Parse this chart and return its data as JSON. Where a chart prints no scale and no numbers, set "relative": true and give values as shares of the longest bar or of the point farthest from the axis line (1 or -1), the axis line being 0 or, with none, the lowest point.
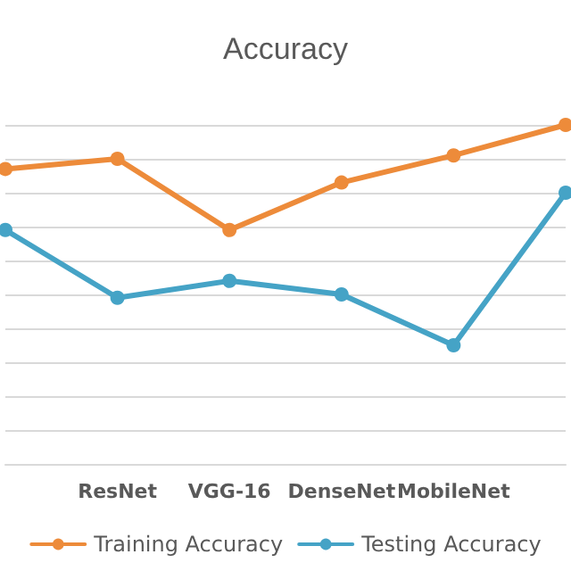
{
  "chart_data": {
    "type": "line",
    "title": "Accuracy",
    "relative": true,
    "categories": [
      null,
      "ResNet",
      "VGG-16",
      "DenseNet",
      "MobileNet",
      null
    ],
    "series": [
      {
        "name": "Training Accuracy",
        "color": "#ed8b3a",
        "values": [
          0.87,
          0.9,
          0.69,
          0.83,
          0.91,
          1.0
        ]
      },
      {
        "name": "Testing Accuracy",
        "color": "#45a3c6",
        "values": [
          0.69,
          0.49,
          0.54,
          0.5,
          0.35,
          0.8
        ]
      }
    ],
    "grid": true,
    "legend": "bottom",
    "marker": "circle",
    "line_style": "solid"
  }
}
